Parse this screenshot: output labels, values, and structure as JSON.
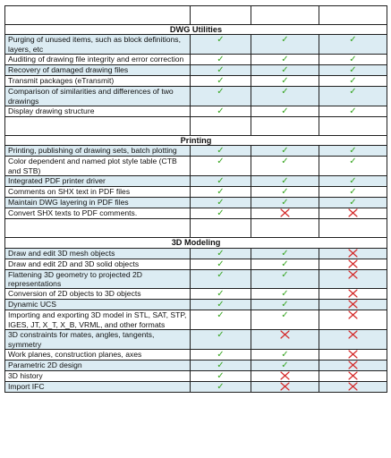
{
  "colors": {
    "band": "#dcecf3",
    "check": "#36a420",
    "cross": "#d42a2a",
    "border": "#1f1f1f"
  },
  "icons": {
    "check": "checkmark-icon",
    "cross": "cross-icon"
  },
  "sections": [
    {
      "title": "DWG Utilities",
      "rows": [
        {
          "feature": "Purging of unused items, such as block definitions, layers, etc",
          "marks": [
            "check",
            "check",
            "check"
          ]
        },
        {
          "feature": "Auditing of drawing file integrity and error correction",
          "marks": [
            "check",
            "check",
            "check"
          ]
        },
        {
          "feature": "Recovery of damaged drawing files",
          "marks": [
            "check",
            "check",
            "check"
          ]
        },
        {
          "feature": "Transmit packages (eTransmit)",
          "marks": [
            "check",
            "check",
            "check"
          ]
        },
        {
          "feature": "Comparison of similarities and differences of two drawings",
          "marks": [
            "check",
            "check",
            "check"
          ]
        },
        {
          "feature": "Display drawing structure",
          "marks": [
            "check",
            "check",
            "check"
          ]
        }
      ]
    },
    {
      "title": "Printing",
      "rows": [
        {
          "feature": "Printing, publishing of drawing sets, batch plotting",
          "marks": [
            "check",
            "check",
            "check"
          ]
        },
        {
          "feature": "Color dependent and named plot style table (CTB and STB)",
          "marks": [
            "check",
            "check",
            "check"
          ]
        },
        {
          "feature": "Integrated PDF printer driver",
          "marks": [
            "check",
            "check",
            "check"
          ]
        },
        {
          "feature": "Comments on SHX text in PDF files",
          "marks": [
            "check",
            "check",
            "check"
          ]
        },
        {
          "feature": "Maintain DWG layering in PDF files",
          "marks": [
            "check",
            "check",
            "check"
          ]
        },
        {
          "feature": "Convert SHX texts to PDF comments.",
          "marks": [
            "check",
            "cross",
            "cross"
          ]
        }
      ]
    },
    {
      "title": "3D Modeling",
      "rows": [
        {
          "feature": "Draw and edit 3D mesh objects",
          "marks": [
            "check",
            "check",
            "cross"
          ]
        },
        {
          "feature": "Draw and edit 2D and 3D solid objects",
          "marks": [
            "check",
            "check",
            "cross"
          ]
        },
        {
          "feature": "Flattening 3D geometry to projected 2D representations",
          "marks": [
            "check",
            "check",
            "cross"
          ]
        },
        {
          "feature": "Conversion of 2D objects to 3D objects",
          "marks": [
            "check",
            "check",
            "cross"
          ]
        },
        {
          "feature": "Dynamic UCS",
          "marks": [
            "check",
            "check",
            "cross"
          ]
        },
        {
          "feature": "Importing and exporting 3D model in STL, SAT, STP, IGES, JT, X_T, X_B, VRML, and other formats",
          "marks": [
            "check",
            "check",
            "cross"
          ]
        },
        {
          "feature": "3D constraints for mates, angles, tangents, symmetry",
          "marks": [
            "check",
            "cross",
            "cross"
          ]
        },
        {
          "feature": "Work planes, construction planes, axes",
          "marks": [
            "check",
            "check",
            "cross"
          ]
        },
        {
          "feature": "Parametric 2D design",
          "marks": [
            "check",
            "check",
            "cross"
          ]
        },
        {
          "feature": "3D history",
          "marks": [
            "check",
            "cross",
            "cross"
          ]
        },
        {
          "feature": "Import IFC",
          "marks": [
            "check",
            "cross",
            "cross"
          ]
        }
      ]
    }
  ]
}
